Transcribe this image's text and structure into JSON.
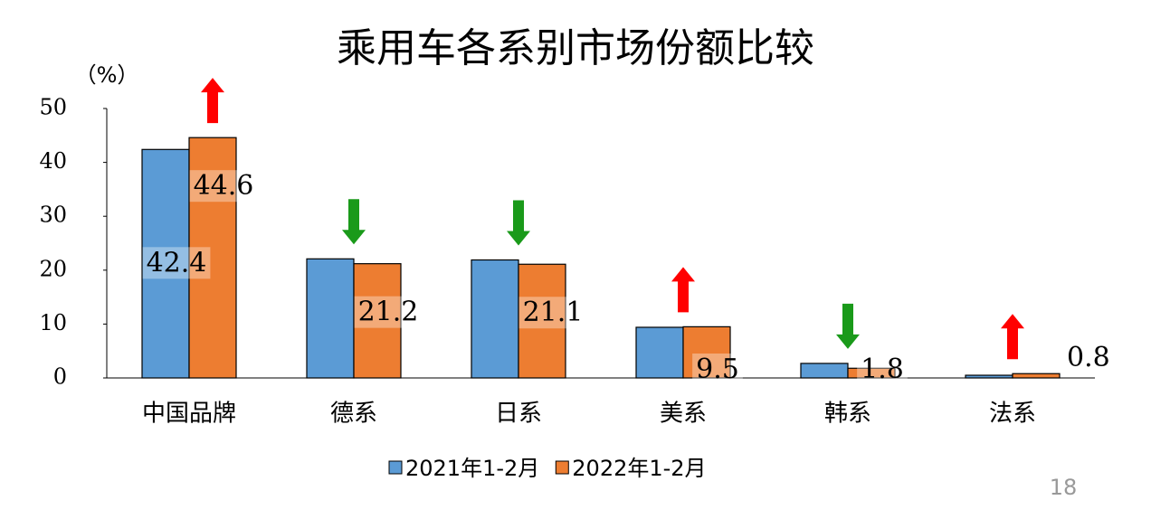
{
  "chart_data": {
    "type": "bar",
    "title": "乘用车各系别市场份额比较",
    "y_label": "（%）",
    "categories": [
      "中国品牌",
      "德系",
      "日系",
      "美系",
      "韩系",
      "法系"
    ],
    "series": [
      {
        "name": "2021年1-2月",
        "color": "#5b9bd5",
        "values": [
          42.4,
          22.1,
          21.9,
          9.4,
          2.7,
          0.5
        ],
        "value_labels": [
          "42.4",
          null,
          null,
          null,
          null,
          null
        ]
      },
      {
        "name": "2022年1-2月",
        "color": "#ed7d31",
        "values": [
          44.6,
          21.2,
          21.1,
          9.5,
          1.8,
          0.8
        ],
        "value_labels": [
          "44.6",
          "21.2",
          "21.1",
          "9.5",
          "1.8",
          "0.8"
        ]
      }
    ],
    "ylim": [
      0,
      50
    ],
    "yticks": [
      0,
      10,
      20,
      30,
      40,
      50
    ],
    "arrow_colors": {
      "up": "#ff0000",
      "down": "#1a9a1a"
    }
  },
  "page_number": "18"
}
